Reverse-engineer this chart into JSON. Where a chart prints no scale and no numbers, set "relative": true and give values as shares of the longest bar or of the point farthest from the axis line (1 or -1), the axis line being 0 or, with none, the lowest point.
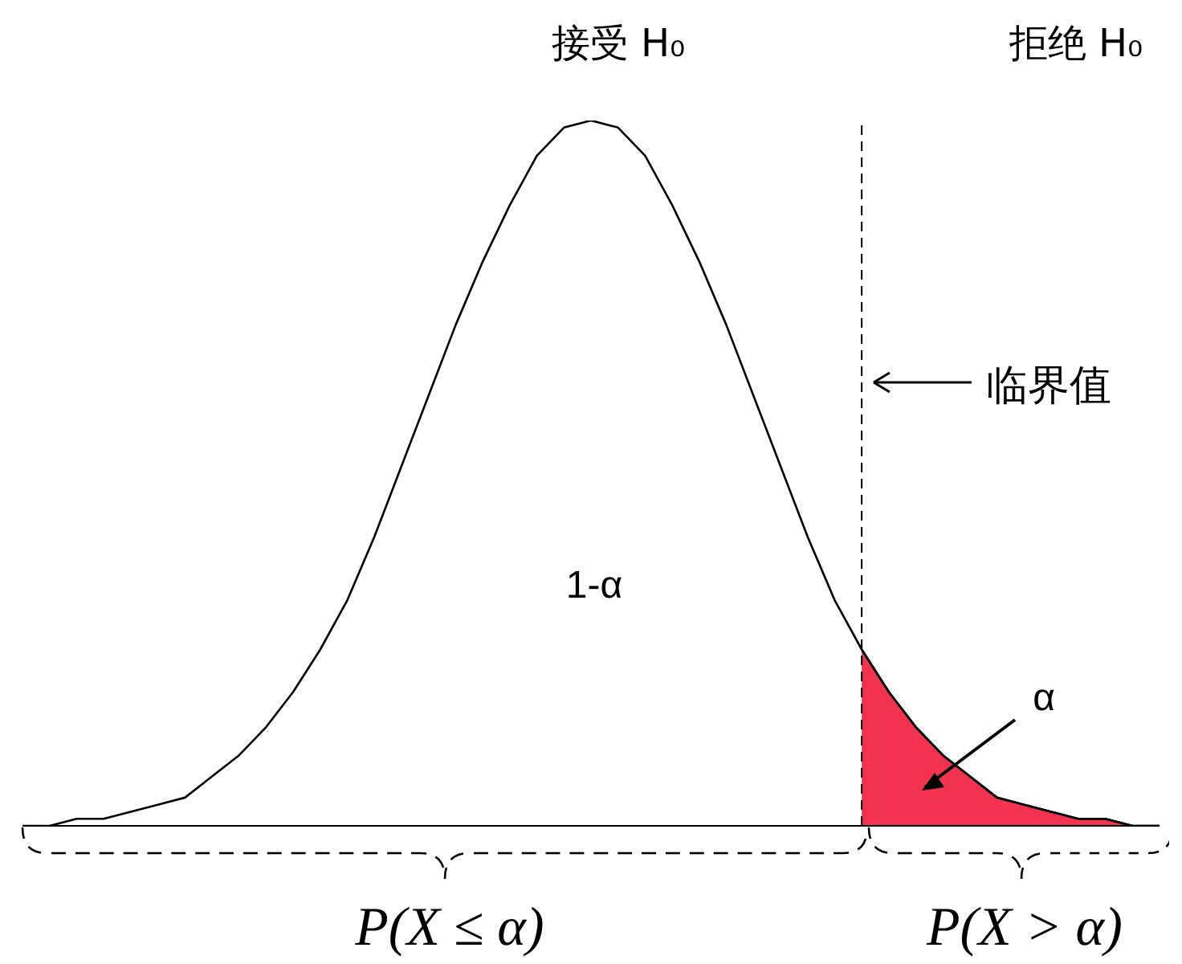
{
  "chart_data": {
    "type": "line",
    "relative": true,
    "categories": [
      null,
      null,
      null,
      null,
      null,
      null,
      null,
      null,
      null,
      null,
      null,
      null,
      null,
      null,
      null,
      null,
      null,
      null,
      null,
      null,
      null,
      null,
      null,
      null,
      null,
      null,
      null,
      null,
      null,
      null,
      null,
      null,
      null,
      null,
      null,
      null,
      null,
      null,
      null,
      null,
      null,
      null,
      null
    ],
    "series": [
      {
        "type": "line",
        "color": "#000000",
        "values": [
          0,
          0,
          0.01,
          0.01,
          0.02,
          0.03,
          0.04,
          0.07,
          0.1,
          0.14,
          0.19,
          0.25,
          0.32,
          0.41,
          0.51,
          0.61,
          0.71,
          0.8,
          0.88,
          0.95,
          0.99,
          1,
          0.99,
          0.95,
          0.88,
          0.8,
          0.71,
          0.61,
          0.51,
          0.41,
          0.32,
          0.25,
          0.19,
          0.14,
          0.1,
          0.07,
          0.04,
          0.03,
          0.02,
          0.01,
          0.01,
          0,
          0
        ]
      },
      {
        "type": "area",
        "color": "#f2334f",
        "values": [
          null,
          null,
          null,
          null,
          null,
          null,
          null,
          null,
          null,
          null,
          null,
          null,
          null,
          null,
          null,
          null,
          null,
          null,
          null,
          null,
          null,
          null,
          null,
          null,
          null,
          null,
          null,
          null,
          null,
          null,
          null,
          0.25,
          0.19,
          0.14,
          0.1,
          0.07,
          0.04,
          0.03,
          0.02,
          0.01,
          0.01,
          0,
          0
        ]
      }
    ],
    "ref_lines": [
      {
        "axis": "x",
        "line_style": "dashed",
        "color": "#000000"
      }
    ],
    "annotations": [
      "接受 H₀",
      "拒绝 H₀",
      "临界值",
      "1-α",
      "α",
      "P(X ≤ α)",
      "P(X > α)"
    ]
  }
}
